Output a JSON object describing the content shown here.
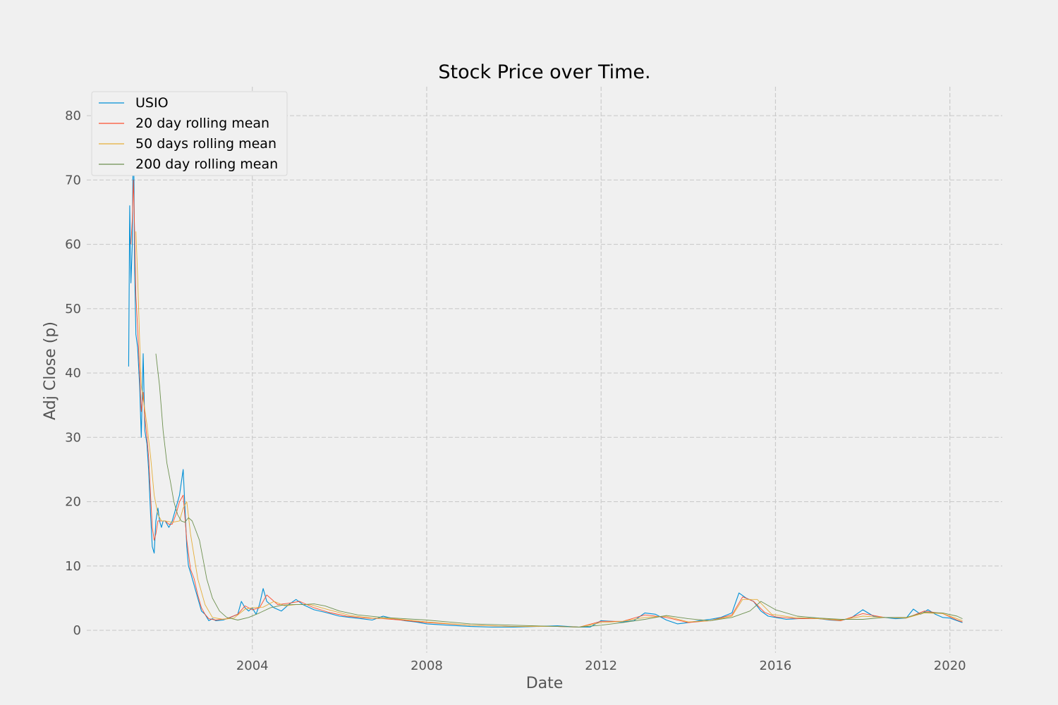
{
  "chart_data": {
    "type": "line",
    "title": "Stock Price over Time.",
    "xlabel": "Date",
    "ylabel": "Adj Close (p)",
    "xlim": [
      "2000-03-15",
      "2021-03-15"
    ],
    "ylim": [
      -3.5,
      84.5
    ],
    "x_ticks": [
      "2004-01-01",
      "2008-01-01",
      "2012-01-01",
      "2016-01-01",
      "2020-01-01"
    ],
    "x_tick_labels": [
      "2004",
      "2008",
      "2012",
      "2016",
      "2020"
    ],
    "y_ticks": [
      0,
      10,
      20,
      30,
      40,
      50,
      60,
      70,
      80
    ],
    "y_tick_labels": [
      "0",
      "10",
      "20",
      "30",
      "40",
      "50",
      "60",
      "70",
      "80"
    ],
    "grid": true,
    "legend_position": "upper-left",
    "series": [
      {
        "name": "USIO",
        "color": "#008fd5",
        "x": [
          "2001-03-01",
          "2001-03-10",
          "2001-03-20",
          "2001-04-01",
          "2001-04-10",
          "2001-04-20",
          "2001-05-01",
          "2001-05-15",
          "2001-06-01",
          "2001-06-15",
          "2001-07-01",
          "2001-07-15",
          "2001-08-01",
          "2001-08-15",
          "2001-09-01",
          "2001-09-15",
          "2001-10-01",
          "2001-10-15",
          "2001-11-01",
          "2001-11-15",
          "2001-12-01",
          "2001-12-15",
          "2002-01-01",
          "2002-02-01",
          "2002-03-01",
          "2002-04-01",
          "2002-05-01",
          "2002-06-01",
          "2002-07-01",
          "2002-07-15",
          "2002-08-01",
          "2002-09-01",
          "2002-10-01",
          "2002-11-01",
          "2002-12-01",
          "2003-01-01",
          "2003-02-01",
          "2003-03-01",
          "2003-05-01",
          "2003-07-01",
          "2003-09-01",
          "2003-10-01",
          "2003-11-01",
          "2003-12-01",
          "2004-01-01",
          "2004-02-01",
          "2004-03-01",
          "2004-04-01",
          "2004-05-01",
          "2004-07-01",
          "2004-09-01",
          "2004-11-01",
          "2005-01-01",
          "2005-03-01",
          "2005-06-01",
          "2005-09-01",
          "2006-01-01",
          "2006-04-01",
          "2006-07-01",
          "2006-10-01",
          "2007-01-01",
          "2007-04-01",
          "2007-07-01",
          "2007-10-01",
          "2008-01-01",
          "2008-07-01",
          "2009-01-01",
          "2009-07-01",
          "2010-01-01",
          "2010-07-01",
          "2011-01-01",
          "2011-07-01",
          "2011-10-01",
          "2012-01-01",
          "2012-04-01",
          "2012-07-01",
          "2012-10-01",
          "2013-01-01",
          "2013-04-01",
          "2013-07-01",
          "2013-10-01",
          "2014-01-01",
          "2014-04-01",
          "2014-07-01",
          "2014-10-01",
          "2015-01-01",
          "2015-03-01",
          "2015-05-01",
          "2015-07-01",
          "2015-09-01",
          "2015-11-01",
          "2016-01-01",
          "2016-04-01",
          "2016-07-01",
          "2016-10-01",
          "2017-01-01",
          "2017-04-01",
          "2017-07-01",
          "2017-10-01",
          "2018-01-01",
          "2018-04-01",
          "2018-07-01",
          "2018-10-01",
          "2019-01-01",
          "2019-03-01",
          "2019-05-01",
          "2019-07-01",
          "2019-09-01",
          "2019-11-01",
          "2020-01-01",
          "2020-03-01",
          "2020-04-15"
        ],
        "y": [
          41,
          66,
          54,
          60,
          81,
          56,
          46,
          44,
          38,
          30,
          43,
          31,
          29,
          25,
          18,
          13,
          12,
          17,
          19,
          17,
          16,
          17,
          17,
          16,
          17,
          19,
          21,
          25,
          13,
          10,
          9,
          7,
          5,
          3,
          2.5,
          1.5,
          1.8,
          1.5,
          1.6,
          2,
          2.5,
          4.5,
          3.5,
          3,
          3.5,
          2.5,
          4,
          6.5,
          4.5,
          3.5,
          3,
          4,
          4.8,
          4,
          3.2,
          2.8,
          2.2,
          2,
          1.8,
          1.6,
          2.2,
          1.8,
          1.5,
          1.3,
          1,
          0.8,
          0.6,
          0.5,
          0.5,
          0.6,
          0.7,
          0.5,
          0.5,
          1.5,
          1.4,
          1.3,
          1.5,
          2.7,
          2.5,
          1.6,
          1,
          1.2,
          1.5,
          1.7,
          2,
          2.7,
          5.8,
          5,
          4.5,
          3,
          2.2,
          2,
          1.7,
          1.8,
          1.9,
          1.8,
          1.6,
          1.5,
          2,
          3.2,
          2.2,
          2,
          1.8,
          1.9,
          3.3,
          2.5,
          3.2,
          2.5,
          2,
          1.9,
          1.5,
          1.2
        ]
      },
      {
        "name": "20 day rolling mean",
        "color": "#fc4f30",
        "x": [
          "2001-03-20",
          "2001-04-01",
          "2001-04-10",
          "2001-04-20",
          "2001-05-01",
          "2001-05-15",
          "2001-06-01",
          "2001-06-15",
          "2001-07-01",
          "2001-07-15",
          "2001-08-01",
          "2001-08-15",
          "2001-09-01",
          "2001-09-15",
          "2001-10-01",
          "2001-10-15",
          "2001-11-01",
          "2001-12-01",
          "2002-01-01",
          "2002-02-01",
          "2002-03-01",
          "2002-04-01",
          "2002-05-01",
          "2002-06-01",
          "2002-07-01",
          "2002-08-01",
          "2002-09-01",
          "2002-10-01",
          "2002-11-01",
          "2002-12-01",
          "2003-01-01",
          "2003-03-01",
          "2003-06-01",
          "2003-09-01",
          "2003-11-01",
          "2004-01-01",
          "2004-03-01",
          "2004-05-01",
          "2004-08-01",
          "2004-11-01",
          "2005-02-01",
          "2005-06-01",
          "2005-10-01",
          "2006-03-01",
          "2006-08-01",
          "2007-01-01",
          "2007-06-01",
          "2008-01-01",
          "2009-01-01",
          "2010-01-01",
          "2011-01-01",
          "2011-07-01",
          "2012-01-01",
          "2012-07-01",
          "2013-01-01",
          "2013-07-01",
          "2014-01-01",
          "2014-07-01",
          "2015-01-01",
          "2015-04-01",
          "2015-07-01",
          "2015-10-01",
          "2016-01-01",
          "2016-07-01",
          "2017-01-01",
          "2017-07-01",
          "2018-01-01",
          "2018-07-01",
          "2019-01-01",
          "2019-06-01",
          "2019-11-01",
          "2020-03-01",
          "2020-04-15"
        ],
        "y": [
          60,
          64,
          70,
          62,
          52,
          47,
          40,
          34,
          37,
          33,
          30,
          27,
          21,
          16,
          14,
          15,
          17,
          17,
          17,
          16.5,
          16.5,
          18,
          20,
          21,
          14,
          9.5,
          8,
          5.5,
          3.5,
          2.5,
          1.8,
          1.6,
          1.8,
          2.5,
          3.8,
          3.2,
          3.5,
          5.5,
          4,
          4.2,
          4.5,
          3.5,
          2.8,
          2.2,
          1.9,
          1.8,
          1.6,
          1.2,
          0.8,
          0.6,
          0.6,
          0.5,
          1.4,
          1.4,
          2.4,
          2,
          1.2,
          1.5,
          2.4,
          5.2,
          4.5,
          2.8,
          2.1,
          1.8,
          1.8,
          1.5,
          2.6,
          2,
          1.9,
          3,
          2.6,
          1.6,
          1.3
        ]
      },
      {
        "name": "50 days rolling mean",
        "color": "#e5ae38",
        "x": [
          "2001-05-01",
          "2001-05-15",
          "2001-06-01",
          "2001-06-15",
          "2001-07-01",
          "2001-08-01",
          "2001-09-01",
          "2001-10-01",
          "2001-11-01",
          "2001-12-01",
          "2002-01-01",
          "2002-03-01",
          "2002-05-01",
          "2002-06-01",
          "2002-07-01",
          "2002-08-01",
          "2002-10-01",
          "2002-12-01",
          "2003-02-01",
          "2003-05-01",
          "2003-08-01",
          "2003-11-01",
          "2004-01-01",
          "2004-04-01",
          "2004-07-01",
          "2004-10-01",
          "2005-01-01",
          "2005-05-01",
          "2005-10-01",
          "2006-04-01",
          "2006-10-01",
          "2007-04-01",
          "2008-01-01",
          "2009-01-01",
          "2010-01-01",
          "2011-01-01",
          "2011-07-01",
          "2012-01-01",
          "2012-07-01",
          "2013-01-01",
          "2013-07-01",
          "2014-01-01",
          "2014-07-01",
          "2015-01-01",
          "2015-04-01",
          "2015-08-01",
          "2015-12-01",
          "2016-06-01",
          "2017-01-01",
          "2017-07-01",
          "2018-01-01",
          "2018-07-01",
          "2019-01-01",
          "2019-06-01",
          "2019-11-01",
          "2020-03-01",
          "2020-04-15"
        ],
        "y": [
          62,
          55,
          45,
          38,
          36,
          32,
          27,
          21,
          18,
          17,
          17,
          16.8,
          17,
          19,
          20,
          15,
          8,
          4,
          2,
          1.7,
          1.9,
          3.3,
          3.5,
          3.6,
          4.5,
          3.8,
          4,
          4,
          3.2,
          2.3,
          1.9,
          1.8,
          1.3,
          0.8,
          0.6,
          0.6,
          0.5,
          1.2,
          1.4,
          2,
          2.2,
          1.3,
          1.5,
          2.2,
          4.8,
          4.8,
          2.5,
          2,
          1.8,
          1.6,
          2.2,
          2,
          1.9,
          2.7,
          2.6,
          1.8,
          1.5
        ]
      },
      {
        "name": "200 day rolling mean",
        "color": "#6d904f",
        "x": [
          "2001-10-15",
          "2001-11-15",
          "2001-12-15",
          "2002-01-15",
          "2002-02-15",
          "2002-03-15",
          "2002-04-15",
          "2002-05-15",
          "2002-06-15",
          "2002-07-15",
          "2002-08-15",
          "2002-09-15",
          "2002-10-15",
          "2002-11-15",
          "2002-12-15",
          "2003-02-01",
          "2003-04-01",
          "2003-06-01",
          "2003-09-01",
          "2003-12-01",
          "2004-03-01",
          "2004-06-01",
          "2004-09-01",
          "2004-12-01",
          "2005-03-01",
          "2005-06-01",
          "2005-09-01",
          "2006-01-01",
          "2006-06-01",
          "2007-01-01",
          "2007-07-01",
          "2008-01-01",
          "2008-07-01",
          "2009-01-01",
          "2010-01-01",
          "2011-01-01",
          "2011-07-01",
          "2012-01-01",
          "2012-07-01",
          "2013-01-01",
          "2013-07-01",
          "2014-01-01",
          "2014-07-01",
          "2015-01-01",
          "2015-06-01",
          "2015-09-01",
          "2016-01-01",
          "2016-07-01",
          "2017-01-01",
          "2017-07-01",
          "2018-01-01",
          "2018-07-01",
          "2019-01-01",
          "2019-06-01",
          "2019-11-01",
          "2020-03-01",
          "2020-04-15"
        ],
        "y": [
          43,
          38,
          31,
          26,
          23,
          20,
          18,
          17,
          16.8,
          17.5,
          17,
          15.5,
          14,
          11,
          8,
          5,
          3,
          2,
          1.6,
          2,
          2.7,
          3.5,
          3.9,
          4,
          4,
          4.1,
          3.8,
          3,
          2.4,
          2,
          1.8,
          1.6,
          1.3,
          1,
          0.8,
          0.6,
          0.5,
          0.8,
          1.2,
          1.7,
          2.3,
          1.8,
          1.5,
          2,
          3,
          4.5,
          3.2,
          2.2,
          1.9,
          1.7,
          1.7,
          2,
          2,
          2.8,
          2.7,
          2.2,
          1.8
        ]
      }
    ]
  }
}
